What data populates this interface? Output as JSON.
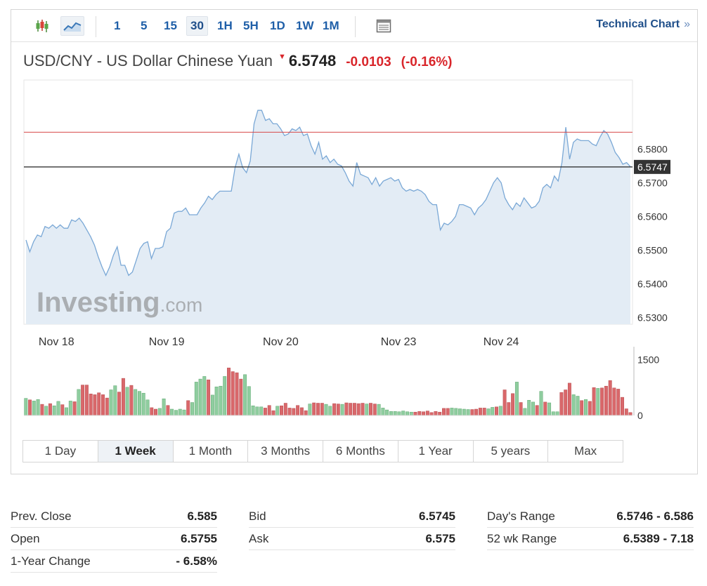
{
  "toolbar": {
    "intervals": [
      "1",
      "5",
      "15",
      "30",
      "1H",
      "5H",
      "1D",
      "1W",
      "1M"
    ],
    "active_interval": "30",
    "technical_chart_label": "Technical Chart",
    "technical_chart_arrow": "»"
  },
  "quote": {
    "name": "USD/CNY - US Dollar Chinese Yuan",
    "last": "6.5748",
    "change": "-0.0103",
    "change_pct": "(-0.16%)",
    "up_color": "#d9262b"
  },
  "chart_data": {
    "type": "area",
    "title": "",
    "xlabel": "",
    "ylabel": "",
    "ylim": [
      6.528,
      6.6005
    ],
    "y_ticks": [
      "6.5300",
      "6.5400",
      "6.5500",
      "6.5600",
      "6.5700",
      "6.5800"
    ],
    "y_tick_values": [
      6.53,
      6.54,
      6.55,
      6.56,
      6.57,
      6.58
    ],
    "x_tick_labels": [
      "Nov 18",
      "Nov 19",
      "Nov 20",
      "Nov 23",
      "Nov 24"
    ],
    "x_tick_index": [
      8,
      37,
      67,
      98,
      125
    ],
    "prev_close_line": 6.585,
    "current_price_label": "6.5747",
    "current_price": 6.5747,
    "watermark": "Investing.com",
    "series": [
      {
        "values": [
          6.553,
          6.5495,
          6.5525,
          6.5545,
          6.554,
          6.557,
          6.5565,
          6.5575,
          6.5565,
          6.5575,
          6.5565,
          6.5565,
          6.559,
          6.5585,
          6.5595,
          6.558,
          6.556,
          6.554,
          6.5515,
          6.548,
          6.545,
          6.5425,
          6.545,
          6.5485,
          6.551,
          6.5455,
          6.5455,
          6.5425,
          6.5435,
          6.547,
          6.5505,
          6.552,
          6.5525,
          6.5475,
          6.5505,
          6.5505,
          6.551,
          6.5555,
          6.5565,
          6.561,
          6.5615,
          6.5615,
          6.5625,
          6.5605,
          6.5605,
          6.5605,
          6.5625,
          6.564,
          6.566,
          6.565,
          6.5665,
          6.5675,
          6.5675,
          6.5675,
          6.5675,
          6.5745,
          6.5785,
          6.5745,
          6.573,
          6.5765,
          6.5875,
          6.5915,
          6.5915,
          6.5885,
          6.589,
          6.5875,
          6.5875,
          6.586,
          6.584,
          6.5845,
          6.586,
          6.5855,
          6.5865,
          6.584,
          6.5845,
          6.581,
          6.5785,
          6.582,
          6.577,
          6.578,
          6.576,
          6.577,
          6.5755,
          6.575,
          6.573,
          6.5705,
          6.569,
          6.576,
          6.5725,
          6.572,
          6.5715,
          6.5695,
          6.5715,
          6.569,
          6.5705,
          6.571,
          6.5715,
          6.5705,
          6.571,
          6.5685,
          6.5675,
          6.568,
          6.5675,
          6.568,
          6.5675,
          6.5665,
          6.5645,
          6.5635,
          6.5635,
          6.556,
          6.558,
          6.5575,
          6.5585,
          6.56,
          6.5635,
          6.5635,
          6.563,
          6.5625,
          6.5605,
          6.5625,
          6.5635,
          6.565,
          6.5675,
          6.57,
          6.5715,
          6.57,
          6.5655,
          6.5635,
          6.562,
          6.564,
          6.563,
          6.5655,
          6.564,
          6.5625,
          6.563,
          6.5645,
          6.5685,
          6.5695,
          6.5685,
          6.572,
          6.5705,
          6.576,
          6.5865,
          6.577,
          6.582,
          6.583,
          6.5825,
          6.5825,
          6.5825,
          6.5815,
          6.581,
          6.5835,
          6.5855,
          6.5845,
          6.582,
          6.579,
          6.5775,
          6.5755,
          6.576,
          6.5748
        ]
      }
    ],
    "volume": {
      "ylim": [
        0,
        1700
      ],
      "y_ticks": [
        "1500",
        "0"
      ],
      "y_tick_values": [
        1500,
        0
      ],
      "up_color": "#8fcd9f",
      "down_color": "#d9686b",
      "bars": [
        {
          "v": 460,
          "d": "u"
        },
        {
          "v": 420,
          "d": "d"
        },
        {
          "v": 390,
          "d": "u"
        },
        {
          "v": 430,
          "d": "u"
        },
        {
          "v": 300,
          "d": "d"
        },
        {
          "v": 250,
          "d": "u"
        },
        {
          "v": 320,
          "d": "d"
        },
        {
          "v": 260,
          "d": "u"
        },
        {
          "v": 380,
          "d": "u"
        },
        {
          "v": 290,
          "d": "d"
        },
        {
          "v": 210,
          "d": "u"
        },
        {
          "v": 390,
          "d": "u"
        },
        {
          "v": 370,
          "d": "d"
        },
        {
          "v": 700,
          "d": "u"
        },
        {
          "v": 820,
          "d": "d"
        },
        {
          "v": 820,
          "d": "d"
        },
        {
          "v": 580,
          "d": "d"
        },
        {
          "v": 560,
          "d": "d"
        },
        {
          "v": 610,
          "d": "d"
        },
        {
          "v": 560,
          "d": "d"
        },
        {
          "v": 470,
          "d": "d"
        },
        {
          "v": 690,
          "d": "u"
        },
        {
          "v": 800,
          "d": "u"
        },
        {
          "v": 630,
          "d": "d"
        },
        {
          "v": 1000,
          "d": "d"
        },
        {
          "v": 760,
          "d": "u"
        },
        {
          "v": 810,
          "d": "d"
        },
        {
          "v": 700,
          "d": "u"
        },
        {
          "v": 650,
          "d": "u"
        },
        {
          "v": 600,
          "d": "u"
        },
        {
          "v": 420,
          "d": "u"
        },
        {
          "v": 210,
          "d": "d"
        },
        {
          "v": 170,
          "d": "d"
        },
        {
          "v": 190,
          "d": "u"
        },
        {
          "v": 450,
          "d": "u"
        },
        {
          "v": 270,
          "d": "d"
        },
        {
          "v": 170,
          "d": "u"
        },
        {
          "v": 140,
          "d": "u"
        },
        {
          "v": 170,
          "d": "u"
        },
        {
          "v": 150,
          "d": "u"
        },
        {
          "v": 400,
          "d": "d"
        },
        {
          "v": 350,
          "d": "u"
        },
        {
          "v": 900,
          "d": "u"
        },
        {
          "v": 980,
          "d": "u"
        },
        {
          "v": 1050,
          "d": "u"
        },
        {
          "v": 960,
          "d": "d"
        },
        {
          "v": 550,
          "d": "u"
        },
        {
          "v": 770,
          "d": "u"
        },
        {
          "v": 790,
          "d": "u"
        },
        {
          "v": 1050,
          "d": "u"
        },
        {
          "v": 1280,
          "d": "d"
        },
        {
          "v": 1180,
          "d": "d"
        },
        {
          "v": 1150,
          "d": "d"
        },
        {
          "v": 980,
          "d": "d"
        },
        {
          "v": 1100,
          "d": "u"
        },
        {
          "v": 780,
          "d": "u"
        },
        {
          "v": 260,
          "d": "u"
        },
        {
          "v": 230,
          "d": "u"
        },
        {
          "v": 230,
          "d": "u"
        },
        {
          "v": 200,
          "d": "d"
        },
        {
          "v": 270,
          "d": "d"
        },
        {
          "v": 130,
          "d": "d"
        },
        {
          "v": 250,
          "d": "u"
        },
        {
          "v": 260,
          "d": "d"
        },
        {
          "v": 330,
          "d": "d"
        },
        {
          "v": 200,
          "d": "d"
        },
        {
          "v": 190,
          "d": "d"
        },
        {
          "v": 270,
          "d": "d"
        },
        {
          "v": 210,
          "d": "d"
        },
        {
          "v": 130,
          "d": "d"
        },
        {
          "v": 310,
          "d": "u"
        },
        {
          "v": 340,
          "d": "d"
        },
        {
          "v": 330,
          "d": "d"
        },
        {
          "v": 330,
          "d": "d"
        },
        {
          "v": 300,
          "d": "u"
        },
        {
          "v": 250,
          "d": "u"
        },
        {
          "v": 320,
          "d": "d"
        },
        {
          "v": 310,
          "d": "d"
        },
        {
          "v": 300,
          "d": "u"
        },
        {
          "v": 340,
          "d": "d"
        },
        {
          "v": 330,
          "d": "d"
        },
        {
          "v": 330,
          "d": "d"
        },
        {
          "v": 320,
          "d": "d"
        },
        {
          "v": 330,
          "d": "d"
        },
        {
          "v": 310,
          "d": "u"
        },
        {
          "v": 330,
          "d": "d"
        },
        {
          "v": 310,
          "d": "d"
        },
        {
          "v": 300,
          "d": "u"
        },
        {
          "v": 200,
          "d": "u"
        },
        {
          "v": 150,
          "d": "u"
        },
        {
          "v": 110,
          "d": "u"
        },
        {
          "v": 110,
          "d": "u"
        },
        {
          "v": 100,
          "d": "u"
        },
        {
          "v": 120,
          "d": "u"
        },
        {
          "v": 100,
          "d": "u"
        },
        {
          "v": 90,
          "d": "u"
        },
        {
          "v": 90,
          "d": "d"
        },
        {
          "v": 110,
          "d": "d"
        },
        {
          "v": 100,
          "d": "d"
        },
        {
          "v": 120,
          "d": "d"
        },
        {
          "v": 80,
          "d": "d"
        },
        {
          "v": 110,
          "d": "d"
        },
        {
          "v": 90,
          "d": "d"
        },
        {
          "v": 190,
          "d": "d"
        },
        {
          "v": 190,
          "d": "d"
        },
        {
          "v": 200,
          "d": "u"
        },
        {
          "v": 190,
          "d": "u"
        },
        {
          "v": 180,
          "d": "u"
        },
        {
          "v": 170,
          "d": "u"
        },
        {
          "v": 160,
          "d": "u"
        },
        {
          "v": 160,
          "d": "d"
        },
        {
          "v": 170,
          "d": "d"
        },
        {
          "v": 200,
          "d": "d"
        },
        {
          "v": 200,
          "d": "d"
        },
        {
          "v": 180,
          "d": "u"
        },
        {
          "v": 220,
          "d": "u"
        },
        {
          "v": 230,
          "d": "d"
        },
        {
          "v": 250,
          "d": "u"
        },
        {
          "v": 690,
          "d": "d"
        },
        {
          "v": 350,
          "d": "d"
        },
        {
          "v": 590,
          "d": "d"
        },
        {
          "v": 900,
          "d": "u"
        },
        {
          "v": 350,
          "d": "d"
        },
        {
          "v": 190,
          "d": "u"
        },
        {
          "v": 410,
          "d": "u"
        },
        {
          "v": 360,
          "d": "u"
        },
        {
          "v": 270,
          "d": "d"
        },
        {
          "v": 650,
          "d": "u"
        },
        {
          "v": 360,
          "d": "d"
        },
        {
          "v": 340,
          "d": "u"
        },
        {
          "v": 100,
          "d": "u"
        },
        {
          "v": 100,
          "d": "u"
        },
        {
          "v": 620,
          "d": "d"
        },
        {
          "v": 690,
          "d": "d"
        },
        {
          "v": 870,
          "d": "d"
        },
        {
          "v": 560,
          "d": "u"
        },
        {
          "v": 520,
          "d": "u"
        },
        {
          "v": 400,
          "d": "d"
        },
        {
          "v": 430,
          "d": "u"
        },
        {
          "v": 380,
          "d": "d"
        },
        {
          "v": 750,
          "d": "d"
        },
        {
          "v": 730,
          "d": "u"
        },
        {
          "v": 740,
          "d": "d"
        },
        {
          "v": 790,
          "d": "d"
        },
        {
          "v": 940,
          "d": "d"
        },
        {
          "v": 740,
          "d": "d"
        },
        {
          "v": 710,
          "d": "d"
        },
        {
          "v": 490,
          "d": "d"
        },
        {
          "v": 180,
          "d": "d"
        },
        {
          "v": 80,
          "d": "d"
        }
      ]
    }
  },
  "periods": [
    "1 Day",
    "1 Week",
    "1 Month",
    "3 Months",
    "6 Months",
    "1 Year",
    "5 years",
    "Max"
  ],
  "active_period": "1 Week",
  "stats": {
    "columns": [
      [
        {
          "label": "Prev. Close",
          "value": "6.585"
        },
        {
          "label": "Open",
          "value": "6.5755"
        },
        {
          "label": "1-Year Change",
          "value": "- 6.58%"
        }
      ],
      [
        {
          "label": "Bid",
          "value": "6.5745"
        },
        {
          "label": "Ask",
          "value": "6.575"
        }
      ],
      [
        {
          "label": "Day's Range",
          "value": "6.5746 - 6.586"
        },
        {
          "label": "52 wk Range",
          "value": "6.5389 - 7.18"
        }
      ]
    ]
  }
}
